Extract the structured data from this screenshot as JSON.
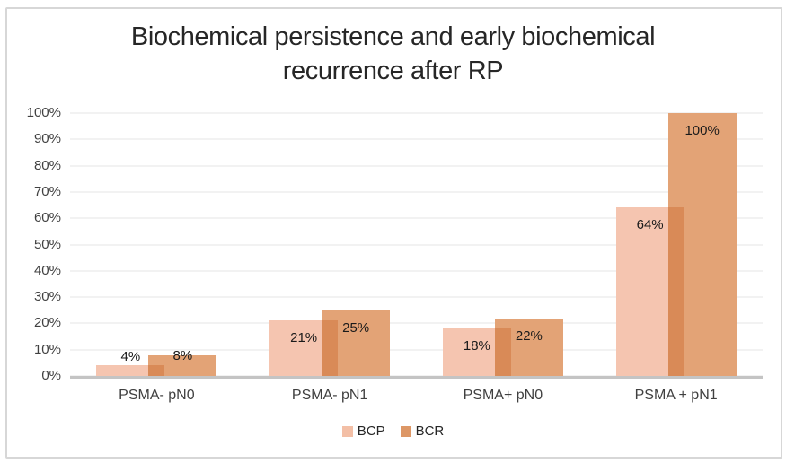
{
  "title": {
    "line1": "Biochemical persistence and early biochemical",
    "line2": "recurrence after RP"
  },
  "chart_data": {
    "type": "bar",
    "title": "Biochemical persistence and early biochemical recurrence after RP",
    "categories": [
      "PSMA- pN0",
      "PSMA- pN1",
      "PSMA+ pN0",
      "PSMA + pN1"
    ],
    "series": [
      {
        "name": "BCP",
        "values": [
          4,
          21,
          18,
          64
        ],
        "color": "#F5C5B0",
        "legend_color": "#F3BFA6"
      },
      {
        "name": "BCR",
        "values": [
          8,
          25,
          22,
          100
        ],
        "color": "#E3A376",
        "legend_color": "#DD9766"
      }
    ],
    "data_labels": [
      [
        "4%",
        "21%",
        "18%",
        "64%"
      ],
      [
        "8%",
        "25%",
        "22%",
        "100%"
      ]
    ],
    "overlap_color": "#D98A57",
    "ylim": [
      0,
      100
    ],
    "ytick_labels": [
      "0%",
      "10%",
      "20%",
      "30%",
      "40%",
      "50%",
      "60%",
      "70%",
      "80%",
      "90%",
      "100%"
    ],
    "grid": true,
    "legend_position": "bottom",
    "bar_overlap_pct": 24,
    "colors": {
      "gridline": "#F2F2F2",
      "axis_line": "#C4C4C4",
      "tick_text": "#404040",
      "title_text": "#262626",
      "frame_border": "#D7D7D7",
      "background": "#FFFFFF"
    }
  }
}
